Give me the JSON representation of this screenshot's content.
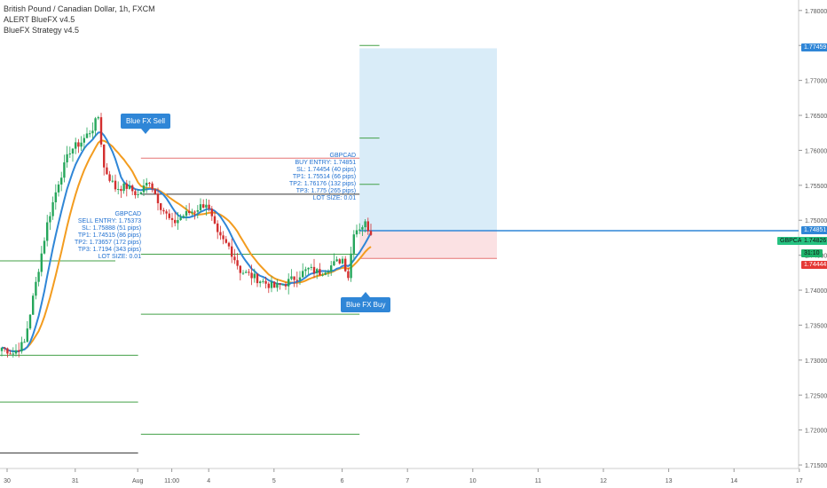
{
  "legend": {
    "title": "British Pound / Canadian Dollar, 1h, FXCM",
    "indicator1": "ALERT BlueFX v4.5",
    "indicator2": "BlueFX Strategy v4.5"
  },
  "callouts": {
    "sell": "Blue FX Sell",
    "buy": "Blue FX Buy"
  },
  "sell_signal": {
    "lines": [
      "GBPCAD",
      "SELL ENTRY: 1.75373",
      "SL: 1.75888 (51 pips)",
      "TP1: 1.74515 (86 pips)",
      "TP2: 1.73657 (172 pips)",
      "TP3: 1.7194 (343 pips)",
      "LOT SIZE: 0.01"
    ]
  },
  "buy_signal": {
    "lines": [
      "GBPCAD",
      "BUY ENTRY: 1.74851",
      "SL: 1.74454 (40 pips)",
      "TP1: 1.75514 (66 pips)",
      "TP2: 1.76176 (132 pips)",
      "TP3: 1.775 (265 pips)",
      "LOT SIZE: 0.01"
    ]
  },
  "axis_tags": {
    "tp_price": "1.77459",
    "entry_price": "1.74851",
    "symbol": "GBPCAD",
    "current_price": "1.74826",
    "countdown": "31:10",
    "sl_price": "1.74444"
  },
  "colors": {
    "up_candle": "#26a65b",
    "down_candle": "#d32f2f",
    "ma_blue": "#2f86d7",
    "ma_orange": "#f39c1f",
    "level_green": "#43a047",
    "level_red": "#e57373",
    "level_black": "#333333",
    "profit_zone": "#d9ecf8",
    "loss_zone": "#fbe1e3"
  },
  "chart_data": {
    "type": "candlestick",
    "symbol": "GBPCAD",
    "interval": "1h",
    "ylim": [
      1.7145,
      1.7815
    ],
    "y_ticks": [
      "1.78000",
      "1.77500",
      "1.77000",
      "1.76500",
      "1.76000",
      "1.75500",
      "1.75000",
      "1.74500",
      "1.74000",
      "1.73500",
      "1.73000",
      "1.72500",
      "1.72000",
      "1.71500"
    ],
    "x_ticks": [
      "30",
      "31",
      "Aug",
      "11:00",
      "4",
      "5",
      "6",
      "7",
      "10",
      "11",
      "12",
      "13",
      "14",
      "17"
    ],
    "close_path": [
      {
        "t": 0,
        "p": 1.7318
      },
      {
        "t": 4,
        "p": 1.731
      },
      {
        "t": 8,
        "p": 1.7325
      },
      {
        "t": 12,
        "p": 1.741
      },
      {
        "t": 16,
        "p": 1.7495
      },
      {
        "t": 20,
        "p": 1.7555
      },
      {
        "t": 24,
        "p": 1.76
      },
      {
        "t": 28,
        "p": 1.7612
      },
      {
        "t": 32,
        "p": 1.7632
      },
      {
        "t": 34,
        "p": 1.7648
      },
      {
        "t": 36,
        "p": 1.7575
      },
      {
        "t": 40,
        "p": 1.7546
      },
      {
        "t": 44,
        "p": 1.7548
      },
      {
        "t": 48,
        "p": 1.7536
      },
      {
        "t": 52,
        "p": 1.7557
      },
      {
        "t": 56,
        "p": 1.752
      },
      {
        "t": 60,
        "p": 1.7495
      },
      {
        "t": 64,
        "p": 1.7507
      },
      {
        "t": 68,
        "p": 1.7515
      },
      {
        "t": 72,
        "p": 1.7525
      },
      {
        "t": 76,
        "p": 1.7478
      },
      {
        "t": 80,
        "p": 1.7462
      },
      {
        "t": 84,
        "p": 1.7428
      },
      {
        "t": 88,
        "p": 1.742
      },
      {
        "t": 92,
        "p": 1.7412
      },
      {
        "t": 96,
        "p": 1.7404
      },
      {
        "t": 100,
        "p": 1.741
      },
      {
        "t": 104,
        "p": 1.742
      },
      {
        "t": 108,
        "p": 1.743
      },
      {
        "t": 112,
        "p": 1.7425
      },
      {
        "t": 116,
        "p": 1.7435
      },
      {
        "t": 120,
        "p": 1.7445
      },
      {
        "t": 122,
        "p": 1.742
      },
      {
        "t": 124,
        "p": 1.7485
      },
      {
        "t": 128,
        "p": 1.7495
      },
      {
        "t": 130,
        "p": 1.7483
      }
    ],
    "levels": {
      "sell_entry": 1.75373,
      "sell_sl": 1.75888,
      "sell_tp1": 1.74515,
      "sell_tp2": 1.73657,
      "sell_tp3": 1.7194,
      "buy_entry": 1.74851,
      "buy_sl": 1.74454,
      "buy_tp1": 1.75514,
      "buy_tp2": 1.76176,
      "buy_tp3": 1.775,
      "tp_zone_top": 1.77459,
      "current": 1.74826,
      "left_green_a": 1.7442,
      "left_green_b": 1.7307,
      "left_green_c": 1.724,
      "left_black": 1.7167
    }
  }
}
